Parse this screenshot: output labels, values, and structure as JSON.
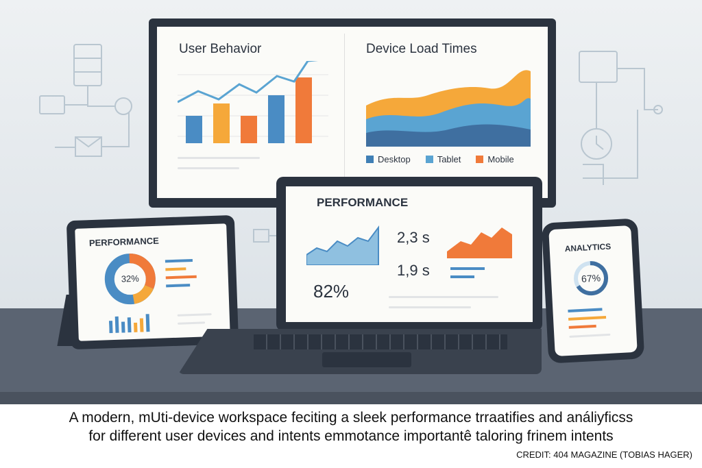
{
  "monitor": {
    "left_title": "User Behavior",
    "right_title": "Device Load Times",
    "legend": [
      {
        "label": "Desktop",
        "color": "#3f7fb5"
      },
      {
        "label": "Tablet",
        "color": "#5aa4d2"
      },
      {
        "label": "Mobile",
        "color": "#f07a3a"
      }
    ]
  },
  "tablet": {
    "title": "PERFORMANCE",
    "donut_value": "32%"
  },
  "laptop": {
    "title": "PERFORMANCE",
    "metric1": "2,3 s",
    "metric2": "1,9 s",
    "metric3": "82%"
  },
  "phone": {
    "title": "ANALYTICS",
    "gauge_value": "67%"
  },
  "caption": {
    "line1": "A modern, mUti-device workspace feciting a sleek performance trraatifies and análiyficss",
    "line2": "for different user devices and intents emmotance importantê taloring frinem intents",
    "credit": "CREDIT: 404 MAGAZINE (TOBIAS HAGER)"
  },
  "colors": {
    "blue": "#4a8cc4",
    "orange": "#f07a3a",
    "yellow": "#f5a83a",
    "frame": "#2b333f"
  }
}
